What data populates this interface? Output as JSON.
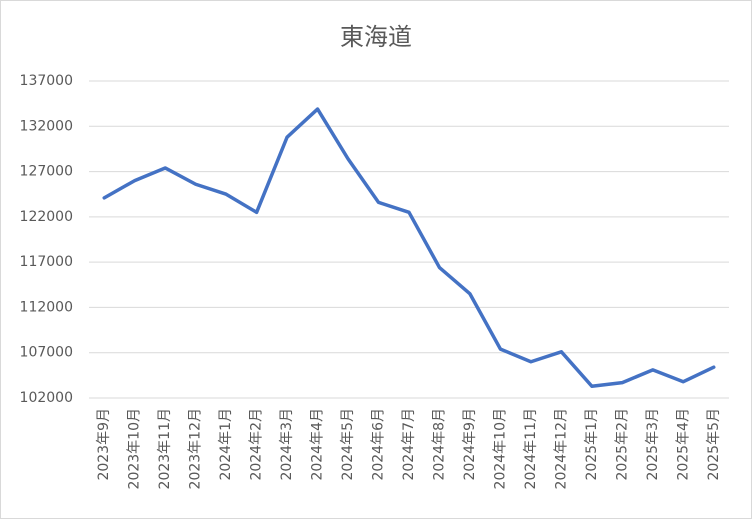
{
  "chart_data": {
    "type": "line",
    "title": "東海道",
    "categories": [
      "2023年9月",
      "2023年10月",
      "2023年11月",
      "2023年12月",
      "2024年1月",
      "2024年2月",
      "2024年3月",
      "2024年4月",
      "2024年5月",
      "2024年6月",
      "2024年7月",
      "2024年8月",
      "2024年9月",
      "2024年10月",
      "2024年11月",
      "2024年12月",
      "2025年1月",
      "2025年2月",
      "2025年3月",
      "2025年4月",
      "2025年5月"
    ],
    "values": [
      124100,
      126000,
      127400,
      125600,
      124500,
      122500,
      130800,
      133900,
      128400,
      123600,
      122500,
      116400,
      113500,
      107400,
      106000,
      107100,
      103300,
      103700,
      105100,
      103800,
      105400
    ],
    "color": "#4472c4",
    "ylim": [
      102000,
      137000
    ],
    "yticks": [
      102000,
      107000,
      112000,
      117000,
      122000,
      127000,
      132000,
      137000
    ],
    "grid": true
  }
}
